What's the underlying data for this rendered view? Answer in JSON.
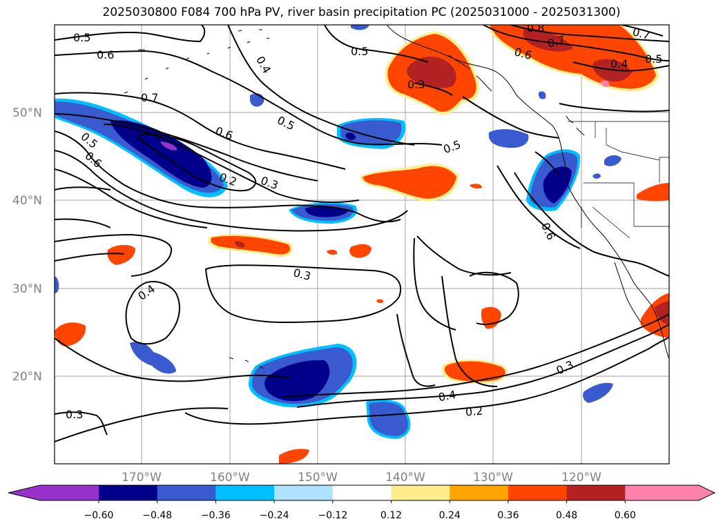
{
  "title": "2025030800 F084 700 hPa PV, river basin precipitation PC (2025031000 - 2025031300)",
  "lat_labels": [
    "50°N",
    "40°N",
    "30°N",
    "20°N"
  ],
  "lon_labels": [
    "170°W",
    "160°W",
    "150°W",
    "140°W",
    "130°W",
    "120°W"
  ],
  "contour_labels": [
    "0.5",
    "0.6",
    "0.4",
    "0.5",
    "0.7",
    "0.6",
    "0.5",
    "0.6",
    "0.2",
    "0.3",
    "0.5",
    "0.5",
    "0.6",
    "0.3",
    "0.4",
    "0.3",
    "0.4",
    "0.2",
    "0.3",
    "0.3",
    "0.8",
    "0.7",
    "0.6",
    "0.7",
    "0.4",
    "0.5",
    "0.3"
  ],
  "colorbar": {
    "ticks": [
      "−0.60",
      "−0.48",
      "−0.36",
      "−0.24",
      "−0.12",
      "0.12",
      "0.24",
      "0.36",
      "0.48",
      "0.60"
    ],
    "colors": [
      "#9932cc",
      "#00008b",
      "#3a5bcf",
      "#00bfff",
      "#b0e2ff",
      "#ffffff",
      "#ffec8b",
      "#ffa500",
      "#ff4500",
      "#b22222",
      "#ff82ab"
    ]
  },
  "colors": {
    "neg_deep": "#00008b",
    "neg_mid": "#3a5bcf",
    "neg_light": "#00bfff",
    "neg_pale": "#b0e2ff",
    "neg_extreme": "#9932cc",
    "pos_pale": "#ffec8b",
    "pos_light": "#ffa500",
    "pos_mid": "#ff4500",
    "pos_deep": "#b22222",
    "pos_extreme": "#ff82ab"
  }
}
